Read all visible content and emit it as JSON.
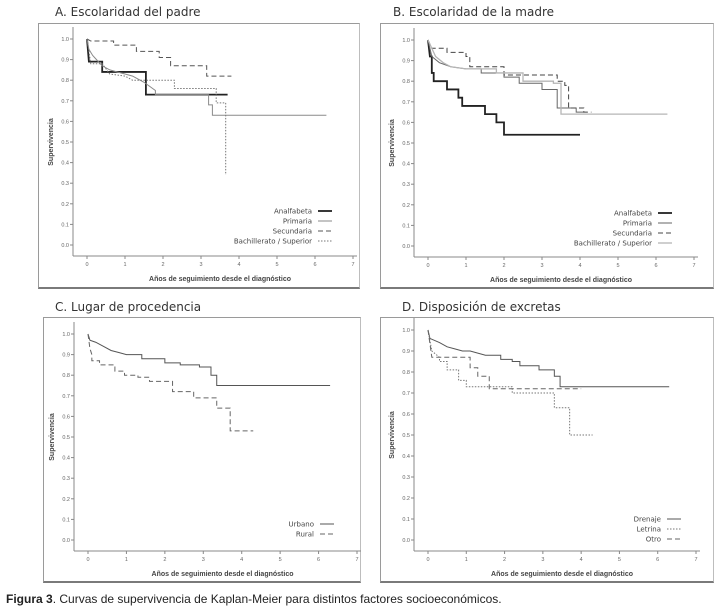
{
  "caption": {
    "label": "Figura 3",
    "text": ". Curvas de supervivencia de Kaplan-Meier para distintos factores socioeconómicos."
  },
  "chart_data": [
    {
      "id": "A",
      "type": "line",
      "step": true,
      "title": "A. Escolaridad del padre",
      "xlabel": "Años de seguimiento desde el diagnóstico",
      "ylabel": "Supervivencia",
      "xlim": [
        0,
        7
      ],
      "ylim": [
        0,
        1
      ],
      "xticks": [
        "0",
        "1",
        "2",
        "3",
        "4",
        "5",
        "6",
        "7"
      ],
      "yticks": [
        "0.0",
        "0.1",
        "0.2",
        "0.3",
        "0.4",
        "0.5",
        "0.6",
        "0.7",
        "0.8",
        "0.9",
        "1.0"
      ],
      "grid": false,
      "legend_position": "bottom-right",
      "series": [
        {
          "name": "Analfabeta",
          "style": "solid-thick",
          "color": "#222222",
          "points": [
            [
              0,
              1.0
            ],
            [
              0.05,
              0.89
            ],
            [
              0.4,
              0.89
            ],
            [
              0.4,
              0.84
            ],
            [
              1.55,
              0.84
            ],
            [
              1.55,
              0.73
            ],
            [
              3.7,
              0.73
            ]
          ]
        },
        {
          "name": "Primaria",
          "style": "solid-thin",
          "color": "#8a8a8a",
          "points": [
            [
              0,
              1.0
            ],
            [
              0.05,
              0.95
            ],
            [
              0.15,
              0.92
            ],
            [
              0.25,
              0.9
            ],
            [
              0.4,
              0.87
            ],
            [
              0.6,
              0.85
            ],
            [
              0.8,
              0.84
            ],
            [
              1.0,
              0.83
            ],
            [
              1.2,
              0.82
            ],
            [
              1.5,
              0.79
            ],
            [
              1.8,
              0.75
            ],
            [
              1.8,
              0.73
            ],
            [
              3.2,
              0.73
            ],
            [
              3.2,
              0.68
            ],
            [
              3.3,
              0.68
            ],
            [
              3.3,
              0.63
            ],
            [
              6.3,
              0.63
            ]
          ]
        },
        {
          "name": "Secundaria",
          "style": "dashed",
          "color": "#555555",
          "points": [
            [
              0,
              1.0
            ],
            [
              0.1,
              0.99
            ],
            [
              0.7,
              0.99
            ],
            [
              0.7,
              0.97
            ],
            [
              1.3,
              0.97
            ],
            [
              1.3,
              0.94
            ],
            [
              1.9,
              0.94
            ],
            [
              1.9,
              0.91
            ],
            [
              2.2,
              0.91
            ],
            [
              2.2,
              0.87
            ],
            [
              3.15,
              0.87
            ],
            [
              3.15,
              0.82
            ],
            [
              3.8,
              0.82
            ]
          ]
        },
        {
          "name": "Bachillerato / Superior",
          "style": "dotted",
          "color": "#777777",
          "points": [
            [
              0,
              1.0
            ],
            [
              0.1,
              0.88
            ],
            [
              0.4,
              0.88
            ],
            [
              0.6,
              0.83
            ],
            [
              1.0,
              0.82
            ],
            [
              1.2,
              0.8
            ],
            [
              2.3,
              0.8
            ],
            [
              2.3,
              0.76
            ],
            [
              3.4,
              0.76
            ],
            [
              3.4,
              0.69
            ],
            [
              3.65,
              0.69
            ],
            [
              3.65,
              0.34
            ]
          ]
        }
      ]
    },
    {
      "id": "B",
      "type": "line",
      "step": true,
      "title": "B. Escolaridad de la madre",
      "xlabel": "Años de seguimiento desde el diagnóstico",
      "ylabel": "Supervivencia",
      "xlim": [
        0,
        7
      ],
      "ylim": [
        0,
        1
      ],
      "xticks": [
        "0",
        "1",
        "2",
        "3",
        "4",
        "5",
        "6",
        "7"
      ],
      "yticks": [
        "0.0",
        "0.1",
        "0.2",
        "0.3",
        "0.4",
        "0.5",
        "0.6",
        "0.7",
        "0.8",
        "0.9",
        "1.0"
      ],
      "grid": false,
      "legend_position": "bottom-right",
      "series": [
        {
          "name": "Analfabeta",
          "style": "solid-thick",
          "color": "#222222",
          "points": [
            [
              0,
              1.0
            ],
            [
              0.05,
              0.92
            ],
            [
              0.1,
              0.92
            ],
            [
              0.1,
              0.84
            ],
            [
              0.15,
              0.84
            ],
            [
              0.15,
              0.8
            ],
            [
              0.5,
              0.8
            ],
            [
              0.5,
              0.76
            ],
            [
              0.8,
              0.76
            ],
            [
              0.8,
              0.72
            ],
            [
              0.9,
              0.72
            ],
            [
              0.9,
              0.68
            ],
            [
              1.5,
              0.68
            ],
            [
              1.5,
              0.64
            ],
            [
              1.8,
              0.64
            ],
            [
              1.8,
              0.6
            ],
            [
              2.0,
              0.6
            ],
            [
              2.0,
              0.54
            ],
            [
              4.0,
              0.54
            ]
          ]
        },
        {
          "name": "Primaria",
          "style": "solid-thin",
          "color": "#666666",
          "points": [
            [
              0,
              1.0
            ],
            [
              0.1,
              0.92
            ],
            [
              0.3,
              0.89
            ],
            [
              0.6,
              0.87
            ],
            [
              1.0,
              0.86
            ],
            [
              1.4,
              0.86
            ],
            [
              1.4,
              0.84
            ],
            [
              2.0,
              0.84
            ],
            [
              2.0,
              0.82
            ],
            [
              2.4,
              0.82
            ],
            [
              2.4,
              0.79
            ],
            [
              3.0,
              0.79
            ],
            [
              3.0,
              0.76
            ],
            [
              3.4,
              0.76
            ],
            [
              3.4,
              0.67
            ],
            [
              3.9,
              0.67
            ],
            [
              3.9,
              0.65
            ],
            [
              4.1,
              0.65
            ]
          ]
        },
        {
          "name": "Secundaria",
          "style": "dashed",
          "color": "#444444",
          "points": [
            [
              0,
              1.0
            ],
            [
              0.1,
              0.96
            ],
            [
              0.5,
              0.96
            ],
            [
              0.5,
              0.94
            ],
            [
              1.0,
              0.94
            ],
            [
              1.0,
              0.92
            ],
            [
              1.1,
              0.92
            ],
            [
              1.1,
              0.87
            ],
            [
              2.0,
              0.87
            ],
            [
              2.0,
              0.83
            ],
            [
              3.4,
              0.83
            ],
            [
              3.4,
              0.8
            ],
            [
              3.6,
              0.8
            ],
            [
              3.6,
              0.78
            ],
            [
              3.7,
              0.78
            ],
            [
              3.7,
              0.67
            ],
            [
              4.1,
              0.67
            ],
            [
              4.1,
              0.65
            ],
            [
              4.3,
              0.65
            ]
          ]
        },
        {
          "name": "Bachillerato / Superior",
          "style": "light",
          "color": "#b5b5b5",
          "points": [
            [
              0,
              1.0
            ],
            [
              0.2,
              0.92
            ],
            [
              0.4,
              0.89
            ],
            [
              0.6,
              0.87
            ],
            [
              1.0,
              0.86
            ],
            [
              1.8,
              0.86
            ],
            [
              1.8,
              0.84
            ],
            [
              2.5,
              0.84
            ],
            [
              2.5,
              0.8
            ],
            [
              3.3,
              0.8
            ],
            [
              3.3,
              0.79
            ],
            [
              3.5,
              0.79
            ],
            [
              3.5,
              0.64
            ],
            [
              6.3,
              0.64
            ]
          ]
        }
      ]
    },
    {
      "id": "C",
      "type": "line",
      "step": true,
      "title": "C. Lugar de procedencia",
      "xlabel": "Años de seguimiento desde el diagnóstico",
      "ylabel": "Supervivencia",
      "xlim": [
        0,
        7
      ],
      "ylim": [
        0,
        1
      ],
      "xticks": [
        "0",
        "1",
        "2",
        "3",
        "4",
        "5",
        "6",
        "7"
      ],
      "yticks": [
        "0.0",
        "0.1",
        "0.2",
        "0.3",
        "0.4",
        "0.5",
        "0.6",
        "0.7",
        "0.8",
        "0.9",
        "1.0"
      ],
      "grid": false,
      "legend_position": "bottom-right",
      "series": [
        {
          "name": "Urbano",
          "style": "solid-thin",
          "color": "#555555",
          "points": [
            [
              0,
              1.0
            ],
            [
              0.05,
              0.97
            ],
            [
              0.2,
              0.96
            ],
            [
              0.4,
              0.94
            ],
            [
              0.6,
              0.92
            ],
            [
              0.8,
              0.91
            ],
            [
              1.0,
              0.9
            ],
            [
              1.4,
              0.9
            ],
            [
              1.4,
              0.88
            ],
            [
              2.0,
              0.88
            ],
            [
              2.0,
              0.86
            ],
            [
              2.4,
              0.86
            ],
            [
              2.4,
              0.85
            ],
            [
              2.9,
              0.85
            ],
            [
              2.9,
              0.84
            ],
            [
              3.2,
              0.84
            ],
            [
              3.2,
              0.8
            ],
            [
              3.35,
              0.8
            ],
            [
              3.35,
              0.75
            ],
            [
              6.3,
              0.75
            ]
          ]
        },
        {
          "name": "Rural",
          "style": "dashed",
          "color": "#666666",
          "points": [
            [
              0,
              1.0
            ],
            [
              0.05,
              0.93
            ],
            [
              0.1,
              0.9
            ],
            [
              0.1,
              0.87
            ],
            [
              0.3,
              0.87
            ],
            [
              0.3,
              0.85
            ],
            [
              0.7,
              0.85
            ],
            [
              0.7,
              0.82
            ],
            [
              0.95,
              0.82
            ],
            [
              0.95,
              0.8
            ],
            [
              1.3,
              0.8
            ],
            [
              1.3,
              0.79
            ],
            [
              1.6,
              0.79
            ],
            [
              1.6,
              0.77
            ],
            [
              2.2,
              0.77
            ],
            [
              2.2,
              0.72
            ],
            [
              2.75,
              0.72
            ],
            [
              2.75,
              0.69
            ],
            [
              3.35,
              0.69
            ],
            [
              3.35,
              0.64
            ],
            [
              3.7,
              0.64
            ],
            [
              3.7,
              0.53
            ],
            [
              4.3,
              0.53
            ]
          ]
        }
      ]
    },
    {
      "id": "D",
      "type": "line",
      "step": true,
      "title": "D. Disposición  de excretas",
      "xlabel": "Años de seguimiento desde el diagnóstico",
      "ylabel": "Supervivencia",
      "xlim": [
        0,
        7
      ],
      "ylim": [
        0,
        1
      ],
      "xticks": [
        "0",
        "1",
        "2",
        "3",
        "4",
        "5",
        "6",
        "7"
      ],
      "yticks": [
        "0.0",
        "0.1",
        "0.2",
        "0.3",
        "0.4",
        "0.5",
        "0.6",
        "0.7",
        "0.8",
        "0.9",
        "1.0"
      ],
      "grid": false,
      "legend_position": "bottom-right",
      "series": [
        {
          "name": "Drenaje",
          "style": "solid-thin",
          "color": "#555555",
          "points": [
            [
              0,
              1.0
            ],
            [
              0.05,
              0.96
            ],
            [
              0.3,
              0.94
            ],
            [
              0.5,
              0.92
            ],
            [
              0.7,
              0.91
            ],
            [
              0.9,
              0.9
            ],
            [
              1.1,
              0.9
            ],
            [
              1.3,
              0.89
            ],
            [
              1.5,
              0.88
            ],
            [
              1.9,
              0.88
            ],
            [
              1.9,
              0.86
            ],
            [
              2.2,
              0.86
            ],
            [
              2.2,
              0.85
            ],
            [
              2.4,
              0.85
            ],
            [
              2.4,
              0.83
            ],
            [
              2.9,
              0.83
            ],
            [
              2.9,
              0.81
            ],
            [
              3.3,
              0.81
            ],
            [
              3.3,
              0.78
            ],
            [
              3.45,
              0.78
            ],
            [
              3.45,
              0.73
            ],
            [
              6.3,
              0.73
            ]
          ]
        },
        {
          "name": "Letrina",
          "style": "dotted",
          "color": "#777777",
          "points": [
            [
              0,
              1.0
            ],
            [
              0.1,
              0.9
            ],
            [
              0.3,
              0.87
            ],
            [
              0.3,
              0.85
            ],
            [
              0.5,
              0.85
            ],
            [
              0.5,
              0.81
            ],
            [
              0.8,
              0.81
            ],
            [
              0.8,
              0.76
            ],
            [
              1.0,
              0.76
            ],
            [
              1.0,
              0.73
            ],
            [
              2.2,
              0.73
            ],
            [
              2.2,
              0.7
            ],
            [
              3.3,
              0.7
            ],
            [
              3.3,
              0.63
            ],
            [
              3.7,
              0.63
            ],
            [
              3.7,
              0.5
            ],
            [
              4.3,
              0.5
            ]
          ]
        },
        {
          "name": "Otro",
          "style": "dashed",
          "color": "#666666",
          "points": [
            [
              0,
              1.0
            ],
            [
              0.1,
              0.87
            ],
            [
              1.1,
              0.87
            ],
            [
              1.1,
              0.82
            ],
            [
              1.3,
              0.82
            ],
            [
              1.3,
              0.78
            ],
            [
              1.6,
              0.78
            ],
            [
              1.6,
              0.72
            ],
            [
              2.9,
              0.72
            ],
            [
              2.9,
              0.72
            ],
            [
              4.0,
              0.72
            ]
          ]
        }
      ]
    }
  ]
}
